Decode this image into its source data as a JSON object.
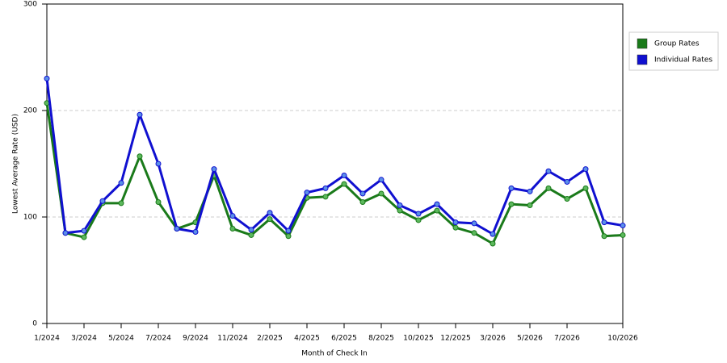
{
  "chart_data": {
    "type": "line",
    "x_label": "Month of Check In",
    "y_label": "Lowest Average Rate (USD)",
    "categories": [
      "1/2024",
      null,
      "3/2024",
      null,
      "5/2024",
      null,
      "7/2024",
      null,
      "9/2024",
      null,
      "11/2024",
      null,
      "2/2025",
      null,
      "4/2025",
      null,
      "6/2025",
      null,
      "8/2025",
      null,
      "10/2025",
      null,
      "12/2025",
      null,
      "3/2026",
      null,
      "5/2026",
      null,
      "7/2026",
      null,
      null,
      "10/2026"
    ],
    "series": [
      {
        "name": "Group Rates",
        "color": "#1a7a1a",
        "marker_color": "#5cb85c",
        "values": [
          207,
          85,
          81,
          113,
          113,
          157,
          114,
          89,
          95,
          139,
          89,
          83,
          98,
          82,
          118,
          119,
          131,
          114,
          122,
          106,
          97,
          106,
          90,
          85,
          75,
          112,
          111,
          127,
          117,
          127,
          82,
          83
        ]
      },
      {
        "name": "Individual Rates",
        "color": "#1010d0",
        "marker_color": "#5b8fe8",
        "values": [
          230,
          85,
          87,
          115,
          132,
          196,
          150,
          89,
          86,
          145,
          101,
          88,
          104,
          87,
          123,
          127,
          139,
          122,
          135,
          111,
          103,
          112,
          95,
          94,
          84,
          127,
          124,
          143,
          133,
          145,
          95,
          92
        ]
      }
    ],
    "ylim": [
      0,
      300
    ],
    "yticks": [
      0,
      100,
      200,
      300
    ],
    "grid": true,
    "legend": "right"
  }
}
